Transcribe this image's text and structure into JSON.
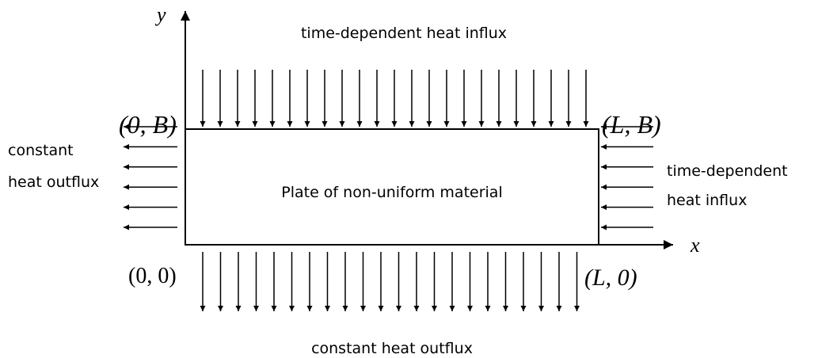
{
  "axes": {
    "y": "y",
    "x": "x"
  },
  "corners": {
    "top_left": "(0, B)",
    "top_right": "(L, B)",
    "bottom_left": "(0, 0)",
    "bottom_right": "(L, 0)"
  },
  "plate": {
    "label": "Plate of non-uniform material"
  },
  "boundaries": {
    "top": {
      "label": "time-dependent heat influx"
    },
    "left": {
      "lines": [
        "constant",
        "heat outflux"
      ]
    },
    "right": {
      "lines": [
        "time-dependent",
        "heat influx"
      ]
    },
    "bottom": {
      "label": "constant heat outflux"
    }
  }
}
